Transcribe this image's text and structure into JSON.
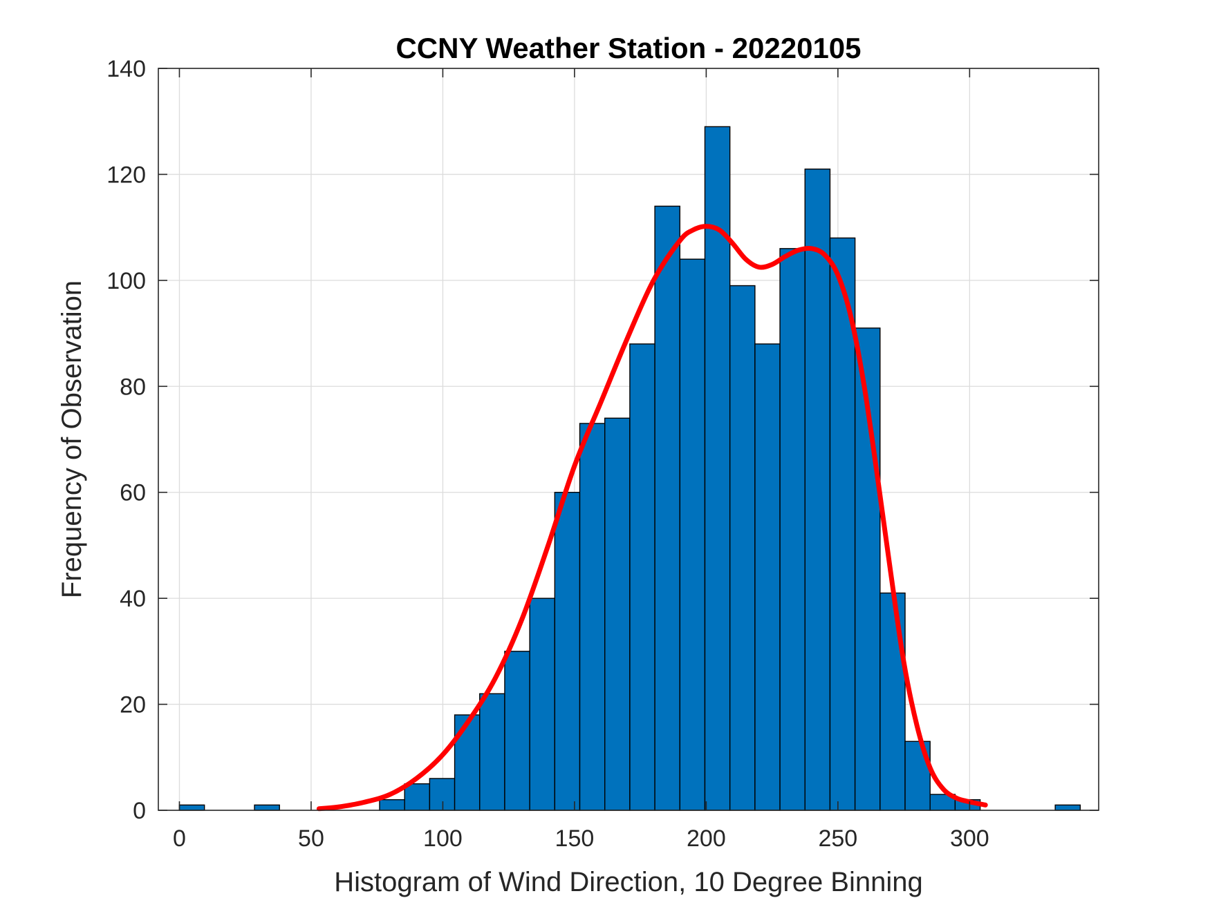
{
  "chart_data": {
    "type": "bar",
    "title": "CCNY Weather Station - 20220105",
    "xlabel": "Histogram of Wind Direction, 10 Degree Binning",
    "ylabel": "Frequency of Observation",
    "xlim": [
      -8,
      349
    ],
    "ylim": [
      0,
      140
    ],
    "x_ticks": [
      0,
      50,
      100,
      150,
      200,
      250,
      300
    ],
    "y_ticks": [
      0,
      20,
      40,
      60,
      80,
      100,
      120,
      140
    ],
    "grid": true,
    "bar_color": "#0072BD",
    "curve_color": "#FF0000",
    "bins": [
      {
        "start": 0,
        "end": 9.5,
        "value": 1
      },
      {
        "start": 28.5,
        "end": 38,
        "value": 1
      },
      {
        "start": 76,
        "end": 85.5,
        "value": 2
      },
      {
        "start": 85.5,
        "end": 95,
        "value": 5
      },
      {
        "start": 95,
        "end": 104.5,
        "value": 6
      },
      {
        "start": 104.5,
        "end": 114,
        "value": 18
      },
      {
        "start": 114,
        "end": 123.5,
        "value": 22
      },
      {
        "start": 123.5,
        "end": 133,
        "value": 30
      },
      {
        "start": 133,
        "end": 142.5,
        "value": 40
      },
      {
        "start": 142.5,
        "end": 152,
        "value": 60
      },
      {
        "start": 152,
        "end": 161.5,
        "value": 73
      },
      {
        "start": 161.5,
        "end": 171,
        "value": 74
      },
      {
        "start": 171,
        "end": 180.5,
        "value": 88
      },
      {
        "start": 180.5,
        "end": 190,
        "value": 114
      },
      {
        "start": 190,
        "end": 199.5,
        "value": 104
      },
      {
        "start": 199.5,
        "end": 209,
        "value": 129
      },
      {
        "start": 209,
        "end": 218.5,
        "value": 99
      },
      {
        "start": 218.5,
        "end": 228,
        "value": 88
      },
      {
        "start": 228,
        "end": 237.5,
        "value": 106
      },
      {
        "start": 237.5,
        "end": 247,
        "value": 121
      },
      {
        "start": 247,
        "end": 256.5,
        "value": 108
      },
      {
        "start": 256.5,
        "end": 266,
        "value": 91
      },
      {
        "start": 266,
        "end": 275.5,
        "value": 41
      },
      {
        "start": 275.5,
        "end": 285,
        "value": 13
      },
      {
        "start": 285,
        "end": 294.5,
        "value": 3
      },
      {
        "start": 294.5,
        "end": 304,
        "value": 2
      },
      {
        "start": 332.5,
        "end": 342,
        "value": 1
      }
    ],
    "fit_curve": {
      "name": "density fit",
      "x": [
        53,
        60,
        70,
        80,
        90,
        100,
        110,
        120,
        130,
        140,
        150,
        160,
        170,
        180,
        190,
        195,
        200,
        205,
        210,
        215,
        220,
        225,
        230,
        235,
        240,
        245,
        250,
        255,
        260,
        265,
        270,
        275,
        280,
        285,
        290,
        295,
        300,
        306
      ],
      "y": [
        0.3,
        0.6,
        1.5,
        3,
        6,
        10.5,
        17,
        25,
        36,
        50,
        65,
        77,
        89,
        100,
        107.5,
        109.5,
        110.2,
        109.5,
        107,
        104,
        102.5,
        103,
        104.5,
        105.7,
        106,
        104.8,
        101,
        93,
        80,
        63,
        45,
        28,
        16,
        8,
        4,
        2.3,
        1.6,
        1
      ]
    }
  }
}
